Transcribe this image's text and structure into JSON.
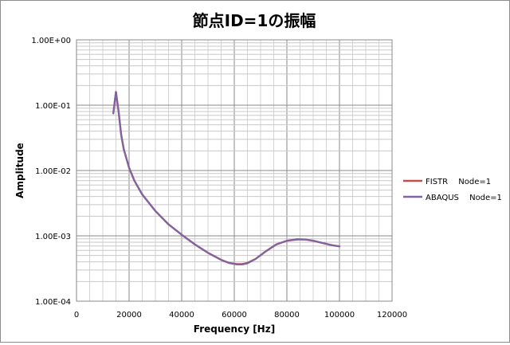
{
  "chart_data": {
    "type": "line",
    "title": "節点ID=1の振幅",
    "xlabel": "Frequency [Hz]",
    "ylabel": "Amplitude",
    "xscale": "linear",
    "yscale": "log",
    "xlim": [
      0,
      120000
    ],
    "ylim": [
      0.0001,
      1
    ],
    "x_ticks": [
      "0",
      "20000",
      "40000",
      "60000",
      "80000",
      "100000",
      "120000"
    ],
    "y_ticks": [
      "1.00E-04",
      "1.00E-03",
      "1.00E-02",
      "1.00E-01",
      "1.00E+00"
    ],
    "grid": true,
    "legend_position": "right",
    "series": [
      {
        "name": "FISTR　 Node=1",
        "color": "#c0504d",
        "x": [
          14000,
          15000,
          16000,
          17000,
          18000,
          20000,
          22000,
          25000,
          30000,
          35000,
          40000,
          45000,
          50000,
          55000,
          58000,
          61000,
          63000,
          65000,
          68000,
          72000,
          76000,
          80000,
          84000,
          87000,
          90000,
          94000,
          97000,
          100000
        ],
        "values": [
          0.075,
          0.16,
          0.08,
          0.035,
          0.021,
          0.011,
          0.007,
          0.0043,
          0.0024,
          0.0015,
          0.00104,
          0.00074,
          0.00055,
          0.00043,
          0.000385,
          0.00037,
          0.00037,
          0.000385,
          0.00044,
          0.00058,
          0.00074,
          0.00084,
          0.00089,
          0.00088,
          0.00084,
          0.00077,
          0.00072,
          0.00069
        ]
      },
      {
        "name": "ABAQUS　 Node=1",
        "color": "#8064a2",
        "x": [
          14000,
          15000,
          16000,
          17000,
          18000,
          20000,
          22000,
          25000,
          30000,
          35000,
          40000,
          45000,
          50000,
          55000,
          58000,
          61000,
          63000,
          65000,
          68000,
          72000,
          76000,
          80000,
          84000,
          87000,
          90000,
          94000,
          97000,
          100000
        ],
        "values": [
          0.075,
          0.16,
          0.08,
          0.035,
          0.021,
          0.011,
          0.007,
          0.0043,
          0.0024,
          0.0015,
          0.00104,
          0.00074,
          0.00055,
          0.00043,
          0.000385,
          0.000365,
          0.000365,
          0.00038,
          0.00044,
          0.00058,
          0.00074,
          0.00084,
          0.00088,
          0.00088,
          0.00084,
          0.00077,
          0.00072,
          0.00069
        ]
      }
    ]
  }
}
